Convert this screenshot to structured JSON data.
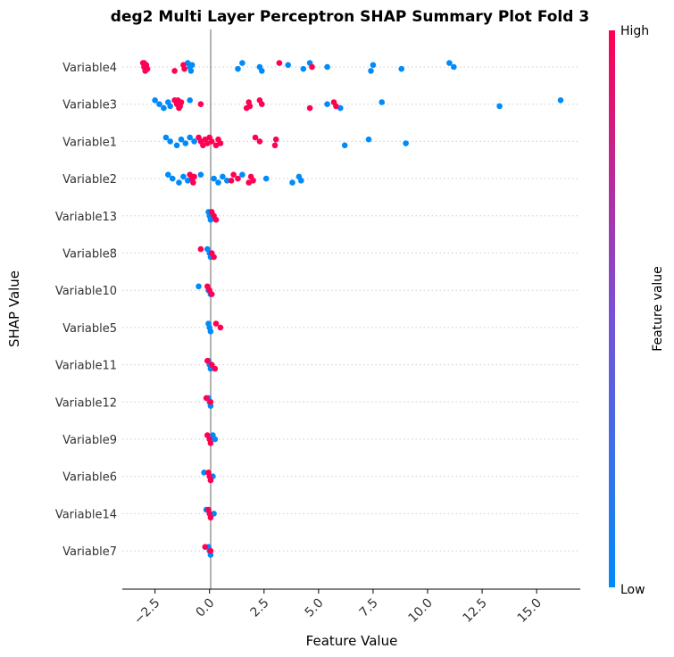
{
  "chart_data": {
    "type": "scatter",
    "title": "deg2 Multi Layer Perceptron SHAP Summary Plot Fold 3",
    "xlabel": "Feature Value",
    "ylabel": "SHAP Value",
    "xlim": [
      -4.0,
      17.0
    ],
    "xticks": [
      "−2.5",
      "0.0",
      "2.5",
      "5.0",
      "7.5",
      "10.0",
      "12.5",
      "15.0"
    ],
    "xtick_values": [
      -2.5,
      0.0,
      2.5,
      5.0,
      7.5,
      10.0,
      12.5,
      15.0
    ],
    "categories": [
      "Variable4",
      "Variable3",
      "Variable1",
      "Variable2",
      "Variable13",
      "Variable8",
      "Variable10",
      "Variable5",
      "Variable11",
      "Variable12",
      "Variable9",
      "Variable6",
      "Variable14",
      "Variable7"
    ],
    "colorbar": {
      "label": "Feature value",
      "high": "High",
      "low": "Low",
      "high_color": "#ff0052",
      "low_color": "#008bfb"
    },
    "series": [
      {
        "category": "Variable4",
        "high_points": [
          -3.0,
          -3.0,
          -2.95,
          -2.9,
          -2.85,
          -3.05,
          -2.9,
          -1.6,
          -1.2,
          -1.15,
          3.2,
          4.7
        ],
        "low_points": [
          -1.0,
          -0.9,
          -0.85,
          -0.8,
          1.3,
          1.5,
          2.3,
          2.4,
          3.6,
          4.3,
          4.6,
          5.4,
          7.4,
          7.5,
          8.8,
          11.0,
          11.2
        ]
      },
      {
        "category": "Variable3",
        "high_points": [
          -1.6,
          -1.5,
          -1.4,
          -1.3,
          -1.35,
          -1.45,
          -0.4,
          1.7,
          1.8,
          1.85,
          2.3,
          2.4,
          4.6,
          5.7,
          5.8
        ],
        "low_points": [
          -2.5,
          -2.3,
          -2.1,
          -1.9,
          -1.8,
          -0.9,
          5.4,
          6.0,
          7.9,
          13.3,
          16.1
        ]
      },
      {
        "category": "Variable1",
        "high_points": [
          -0.5,
          -0.4,
          -0.3,
          -0.2,
          -0.1,
          0.0,
          0.1,
          0.3,
          0.4,
          0.5,
          2.1,
          2.3,
          3.0,
          3.05
        ],
        "low_points": [
          -2.0,
          -1.8,
          -1.5,
          -1.3,
          -1.1,
          -0.9,
          -0.7,
          6.2,
          7.3,
          9.0
        ]
      },
      {
        "category": "Variable2",
        "high_points": [
          -0.9,
          -0.8,
          -0.75,
          -0.7,
          1.0,
          1.1,
          1.3,
          1.8,
          1.9,
          2.0
        ],
        "low_points": [
          -1.9,
          -1.7,
          -1.4,
          -1.2,
          -1.0,
          -0.4,
          0.2,
          0.4,
          0.6,
          0.8,
          1.5,
          2.6,
          3.8,
          4.1,
          4.2
        ]
      },
      {
        "category": "Variable13",
        "high_points": [
          0.1,
          0.2,
          0.3
        ],
        "low_points": [
          -0.05,
          0.0,
          0.05
        ]
      },
      {
        "category": "Variable8",
        "high_points": [
          -0.4,
          0.1,
          0.2
        ],
        "low_points": [
          -0.1,
          0.0,
          0.05
        ]
      },
      {
        "category": "Variable10",
        "high_points": [
          -0.1,
          0.0,
          0.1
        ],
        "low_points": [
          -0.5,
          -0.05,
          0.05
        ]
      },
      {
        "category": "Variable5",
        "high_points": [
          0.3,
          0.5
        ],
        "low_points": [
          -0.05,
          0.0,
          0.05
        ]
      },
      {
        "category": "Variable11",
        "high_points": [
          -0.1,
          0.1,
          0.25
        ],
        "low_points": [
          -0.05,
          0.0,
          0.05
        ]
      },
      {
        "category": "Variable12",
        "high_points": [
          -0.15,
          0.05
        ],
        "low_points": [
          -0.05,
          0.0,
          0.05
        ]
      },
      {
        "category": "Variable9",
        "high_points": [
          -0.1,
          0.0,
          0.05
        ],
        "low_points": [
          0.15,
          0.25
        ]
      },
      {
        "category": "Variable6",
        "high_points": [
          -0.05,
          0.0,
          0.05
        ],
        "low_points": [
          -0.25,
          0.15
        ]
      },
      {
        "category": "Variable14",
        "high_points": [
          -0.05,
          0.0,
          0.05
        ],
        "low_points": [
          -0.15,
          0.2
        ]
      },
      {
        "category": "Variable7",
        "high_points": [
          -0.2,
          0.05
        ],
        "low_points": [
          -0.05,
          0.0,
          0.05
        ]
      }
    ]
  }
}
